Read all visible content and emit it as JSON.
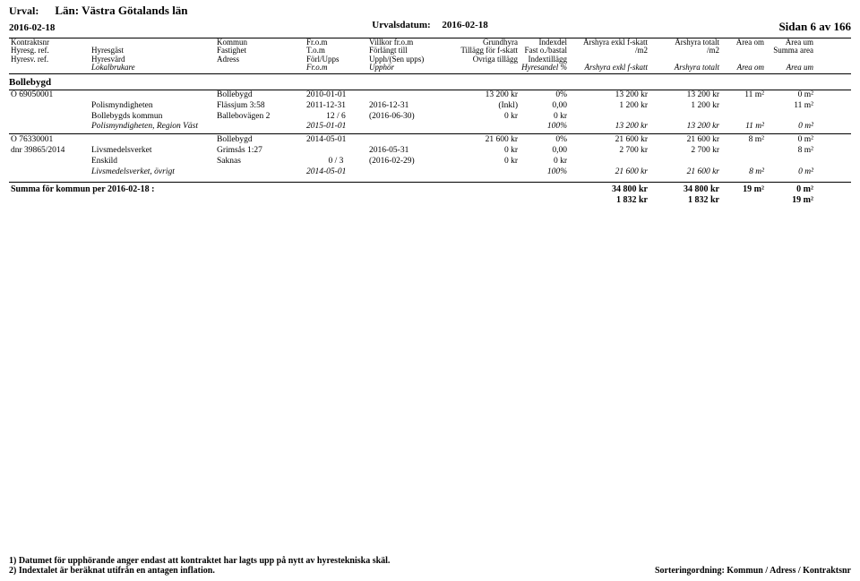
{
  "header": {
    "urval_label": "Urval:",
    "urval_value": "Län: Västra Götalands län",
    "date_left": "2016-02-18",
    "urvalsdatum_label": "Urvalsdatum:",
    "urvalsdatum_value": "2016-02-18",
    "page_label": "Sidan 6 av 166"
  },
  "columns": {
    "r1": {
      "c1": "Kontraktsnr",
      "c3": "Kommun",
      "c4": "Fr.o.m",
      "c5": "Villkor fr.o.m",
      "c6": "Grundhyra",
      "c7": "Indexdel",
      "c8": "Årshyra exkl f-skatt",
      "c9": "Årshyra totalt",
      "c10": "Area om",
      "c11": "Area um"
    },
    "r2": {
      "c1": "Hyresg. ref.",
      "c2": "Hyresgäst",
      "c3": "Fastighet",
      "c4": "T.o.m",
      "c5": "Förlängt till",
      "c6": "Tillägg för f-skatt",
      "c7": "Fast o./bastal",
      "c8": "/m2",
      "c9": "/m2",
      "c11": "Summa area"
    },
    "r3": {
      "c1": "Hyresv. ref.",
      "c2": "Hyresvärd",
      "c3": "Adress",
      "c4": "Förl/Upps",
      "c5": "Upph/(Sen upps)",
      "c6": "Övriga tillägg",
      "c7": "Indextillägg"
    },
    "r4": {
      "c2": "Lokalbrukare",
      "c4": "Fr.o.m",
      "c5": "Upphör",
      "c7": "Hyresandel %",
      "c8": "Årshyra exkl f-skatt",
      "c9": "Årshyra totalt",
      "c10": "Area om",
      "c11": "Area um"
    }
  },
  "region": "Bollebygd",
  "block1": {
    "r1": {
      "c1": "O 69050001",
      "c3": "Bollebygd",
      "c4": "2010-01-01",
      "c6": "13 200 kr",
      "c7": "0%",
      "c8": "13 200 kr",
      "c9": "13 200 kr",
      "c10": "11 m²",
      "c11": "0 m²"
    },
    "r2": {
      "c2": "Polismyndigheten",
      "c3": "Flässjum 3:58",
      "c4": "2011-12-31",
      "c5": "2016-12-31",
      "c6": "(Inkl)",
      "c7": "0,00",
      "c8": "1 200 kr",
      "c9": "1 200 kr",
      "c11": "11 m²"
    },
    "r3": {
      "c2": "Bollebygds kommun",
      "c3": "Ballebovägen 2",
      "c4": "12 / 6",
      "c5": "(2016-06-30)",
      "c6": "0 kr",
      "c7": "0 kr"
    },
    "r4": {
      "c2": "Polismyndigheten, Region Väst",
      "c4": "2015-01-01",
      "c7": "100%",
      "c8": "13 200 kr",
      "c9": "13 200 kr",
      "c10": "11 m²",
      "c11": "0 m²"
    }
  },
  "block2": {
    "r1": {
      "c1": "O 76330001",
      "c3": "Bollebygd",
      "c4": "2014-05-01",
      "c6": "21 600 kr",
      "c7": "0%",
      "c8": "21 600 kr",
      "c9": "21 600 kr",
      "c10": "8 m²",
      "c11": "0 m²"
    },
    "r2": {
      "c1": "dnr 39865/2014",
      "c2": "Livsmedelsverket",
      "c3": "Grimsås 1:27",
      "c5": "2016-05-31",
      "c6": "0 kr",
      "c7": "0,00",
      "c8": "2 700 kr",
      "c9": "2 700 kr",
      "c11": "8 m²"
    },
    "r3": {
      "c2": "Enskild",
      "c3": "Saknas",
      "c4": "0 / 3",
      "c5": "(2016-02-29)",
      "c6": "0 kr",
      "c7": "0 kr"
    },
    "r4": {
      "c2": "Livsmedelsverket, övrigt",
      "c4": "2014-05-01",
      "c7": "100%",
      "c8": "21 600 kr",
      "c9": "21 600 kr",
      "c10": "8 m²",
      "c11": "0 m²"
    }
  },
  "summary": {
    "label": "Summa för kommun per 2016-02-18 :",
    "r1": {
      "c8": "34 800 kr",
      "c9": "34 800 kr",
      "c10": "19 m²",
      "c11": "0 m²"
    },
    "r2": {
      "c8": "1 832 kr",
      "c9": "1 832 kr",
      "c11": "19 m²"
    }
  },
  "footer": {
    "note1": "1) Datumet för upphörande anger endast att kontraktet har lagts upp på nytt av hyrestekniska skäl.",
    "note2": "2) Indextalet är beräknat utifrån en antagen inflation.",
    "sort": "Sorteringordning: Kommun / Adress / Kontraktsnr"
  }
}
